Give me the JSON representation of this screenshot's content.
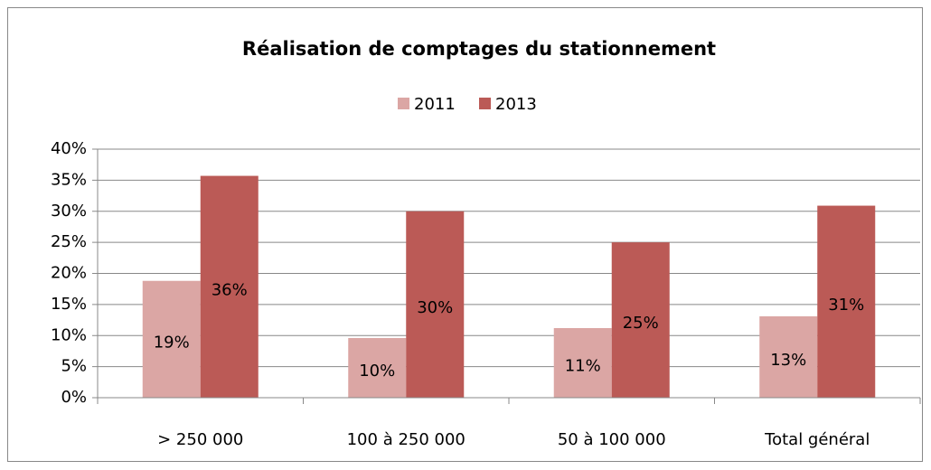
{
  "chart_data": {
    "type": "bar",
    "title": "Réalisation de comptages du stationnement",
    "categories": [
      "> 250 000",
      "100 à 250 000",
      "50 à 100 000",
      "Total général"
    ],
    "series": [
      {
        "name": "2011",
        "color": "#dba6a4",
        "values": [
          18.8,
          9.6,
          11.2,
          13.1
        ],
        "value_labels": [
          "19%",
          "10%",
          "11%",
          "13%"
        ]
      },
      {
        "name": "2013",
        "color": "#bb5a56",
        "values": [
          35.7,
          30.0,
          25.0,
          30.9
        ],
        "value_labels": [
          "36%",
          "30%",
          "25%",
          "31%"
        ]
      }
    ],
    "ylim": [
      0,
      40
    ],
    "yticks": [
      {
        "value": 0,
        "label": "0%"
      },
      {
        "value": 5,
        "label": "5%"
      },
      {
        "value": 10,
        "label": "10%"
      },
      {
        "value": 15,
        "label": "15%"
      },
      {
        "value": 20,
        "label": "20%"
      },
      {
        "value": 25,
        "label": "25%"
      },
      {
        "value": 30,
        "label": "30%"
      },
      {
        "value": 35,
        "label": "35%"
      },
      {
        "value": 40,
        "label": "40%"
      }
    ],
    "grid": true,
    "legend": "top"
  }
}
